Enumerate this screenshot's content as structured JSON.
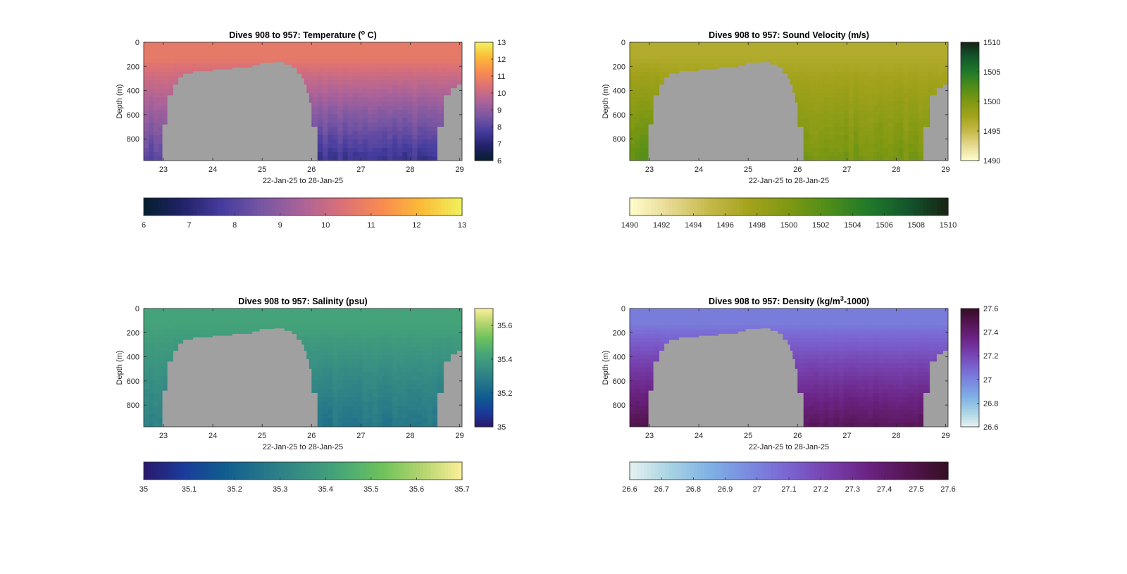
{
  "figure": {
    "background": "#ffffff",
    "mask_color": "#a0a0a0"
  },
  "chart_data": [
    {
      "id": "temperature",
      "type": "heatmap",
      "title": "Dives 908 to 957: Temperature (",
      "title_sup": "o",
      "title_tail": " C)",
      "xlabel": "22-Jan-25 to 28-Jan-25",
      "ylabel": "Depth (m)",
      "xlim": [
        22.6,
        29.05
      ],
      "ylim": [
        980,
        0
      ],
      "x_ticks": [
        "23",
        "24",
        "25",
        "26",
        "27",
        "28",
        "29"
      ],
      "y_ticks": [
        "0",
        "200",
        "400",
        "600",
        "800"
      ],
      "clim": [
        6,
        13
      ],
      "colormap_name": "thermal",
      "colormap": [
        "#041f2e",
        "#22236a",
        "#473d9f",
        "#7a57a3",
        "#ac6399",
        "#db7076",
        "#f88c4f",
        "#fbbc37",
        "#f0f25e"
      ],
      "colorbar_ticks": [
        "6",
        "7",
        "8",
        "9",
        "10",
        "11",
        "12",
        "13"
      ],
      "profile": {
        "surface": 10.7,
        "surface_depth": 350,
        "deep": 7.5,
        "deep_left": 8.0,
        "noise": 0.5
      },
      "horizontal_colorbar_ticks": [
        "6",
        "7",
        "8",
        "9",
        "10",
        "11",
        "12",
        "13"
      ]
    },
    {
      "id": "sound_velocity",
      "type": "heatmap",
      "title": "Dives 908 to 957: Sound Velocity (m/s)",
      "title_sup": "",
      "title_tail": "",
      "xlabel": "22-Jan-25 to 28-Jan-25",
      "ylabel": "Depth (m)",
      "xlim": [
        22.6,
        29.05
      ],
      "ylim": [
        980,
        0
      ],
      "x_ticks": [
        "23",
        "24",
        "25",
        "26",
        "27",
        "28",
        "29"
      ],
      "y_ticks": [
        "0",
        "200",
        "400",
        "600",
        "800"
      ],
      "clim": [
        1490,
        1510
      ],
      "colormap_name": "speed",
      "colormap": [
        "#fffdcd",
        "#e6d993",
        "#c5b94a",
        "#a3a21b",
        "#7f9812",
        "#4e8d19",
        "#207a2a",
        "#14562c",
        "#172313"
      ],
      "colorbar_ticks": [
        "1490",
        "1495",
        "1500",
        "1505",
        "1510"
      ],
      "profile": {
        "surface": 1496.5,
        "surface_depth": 300,
        "deep": 1500.5,
        "deep_left": 1502.0,
        "noise": 1.3
      },
      "horizontal_colorbar_ticks": [
        "1490",
        "1492",
        "1494",
        "1496",
        "1498",
        "1500",
        "1502",
        "1504",
        "1506",
        "1508",
        "1510"
      ]
    },
    {
      "id": "salinity",
      "type": "heatmap",
      "title": "Dives 908 to 957: Salinity (psu)",
      "title_sup": "",
      "title_tail": "",
      "xlabel": "22-Jan-25 to 28-Jan-25",
      "ylabel": "Depth (m)",
      "xlim": [
        22.6,
        29.05
      ],
      "ylim": [
        980,
        0
      ],
      "x_ticks": [
        "23",
        "24",
        "25",
        "26",
        "27",
        "28",
        "29"
      ],
      "y_ticks": [
        "0",
        "200",
        "400",
        "600",
        "800"
      ],
      "clim": [
        35,
        35.7
      ],
      "colormap_name": "haline",
      "colormap": [
        "#2a186c",
        "#1b3b9b",
        "#105c90",
        "#267689",
        "#388f83",
        "#48a876",
        "#6ec25b",
        "#b4d46f",
        "#fdef9a"
      ],
      "colorbar_ticks": [
        "35",
        "35.2",
        "35.4",
        "35.6"
      ],
      "profile": {
        "surface": 35.42,
        "surface_depth": 320,
        "deep": 35.26,
        "deep_left": 35.3,
        "noise": 0.04
      },
      "horizontal_colorbar_ticks": [
        "35",
        "35.1",
        "35.2",
        "35.3",
        "35.4",
        "35.5",
        "35.6",
        "35.7"
      ]
    },
    {
      "id": "density",
      "type": "heatmap",
      "title": "Dives 908 to 957: Density (kg/m",
      "title_sup": "3",
      "title_tail": "-1000)",
      "xlabel": "22-Jan-25 to 28-Jan-25",
      "ylabel": "Depth (m)",
      "xlim": [
        22.6,
        29.05
      ],
      "ylim": [
        980,
        0
      ],
      "x_ticks": [
        "23",
        "24",
        "25",
        "26",
        "27",
        "28",
        "29"
      ],
      "y_ticks": [
        "0",
        "200",
        "400",
        "600",
        "800"
      ],
      "clim": [
        26.6,
        27.6
      ],
      "colormap_name": "dense",
      "colormap": [
        "#e6f1f1",
        "#a9d3e3",
        "#7fb1e5",
        "#7a8ae0",
        "#7a64d1",
        "#7640ad",
        "#6b2383",
        "#551552",
        "#360e24"
      ],
      "colorbar_ticks": [
        "26.6",
        "26.8",
        "27",
        "27.2",
        "27.4",
        "27.6"
      ],
      "profile": {
        "surface": 27.02,
        "surface_depth": 300,
        "deep": 27.45,
        "deep_left": 27.5,
        "noise": 0.04
      },
      "horizontal_colorbar_ticks": [
        "26.6",
        "26.7",
        "26.8",
        "26.9",
        "27",
        "27.1",
        "27.2",
        "27.3",
        "27.4",
        "27.5",
        "27.6"
      ]
    }
  ]
}
